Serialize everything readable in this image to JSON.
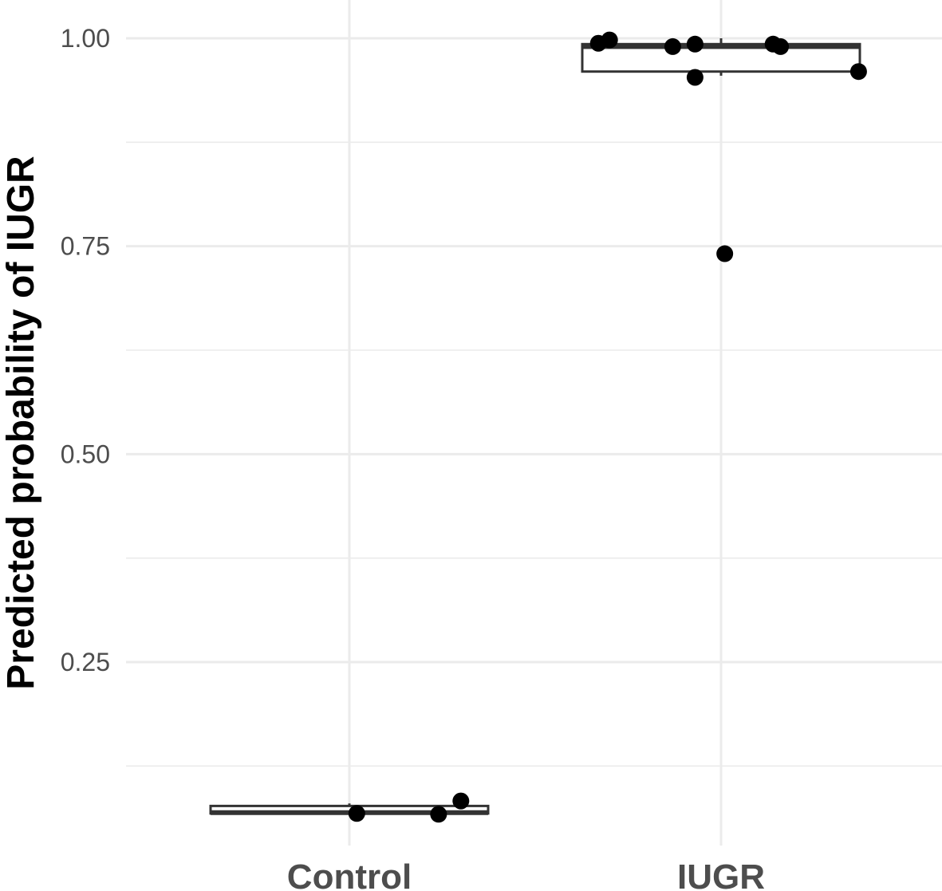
{
  "chart_data": {
    "type": "boxplot",
    "title": "",
    "xlabel": "",
    "ylabel": "Predicted probability of IUGR",
    "categories": [
      "Control",
      "IUGR"
    ],
    "ylim": [
      0.045,
      1.02
    ],
    "y_ticks": [
      0.25,
      0.5,
      0.75,
      1.0
    ],
    "y_tick_labels": [
      "0.25",
      "0.50",
      "0.75",
      "1.00"
    ],
    "y_minor_ticks": [
      0.125,
      0.375,
      0.625,
      0.875
    ],
    "grid": true,
    "legend": "none",
    "boxes": [
      {
        "category": "Control",
        "lower": 0.068,
        "q1": 0.068,
        "median": 0.069,
        "q3": 0.077,
        "upper": 0.08
      },
      {
        "category": "IUGR",
        "lower": 0.955,
        "q1": 0.96,
        "median": 0.99,
        "q3": 0.993,
        "upper": 1.0
      }
    ],
    "points": [
      {
        "category": "Control",
        "jitter": 0.02,
        "y": 0.068
      },
      {
        "category": "Control",
        "jitter": 0.24,
        "y": 0.067
      },
      {
        "category": "Control",
        "jitter": 0.3,
        "y": 0.083
      },
      {
        "category": "IUGR",
        "jitter": -0.33,
        "y": 0.994
      },
      {
        "category": "IUGR",
        "jitter": -0.3,
        "y": 0.998
      },
      {
        "category": "IUGR",
        "jitter": -0.13,
        "y": 0.99
      },
      {
        "category": "IUGR",
        "jitter": -0.07,
        "y": 0.993
      },
      {
        "category": "IUGR",
        "jitter": -0.07,
        "y": 0.953
      },
      {
        "category": "IUGR",
        "jitter": 0.01,
        "y": 0.741
      },
      {
        "category": "IUGR",
        "jitter": 0.14,
        "y": 0.993
      },
      {
        "category": "IUGR",
        "jitter": 0.16,
        "y": 0.99
      },
      {
        "category": "IUGR",
        "jitter": 0.37,
        "y": 0.96
      }
    ]
  }
}
